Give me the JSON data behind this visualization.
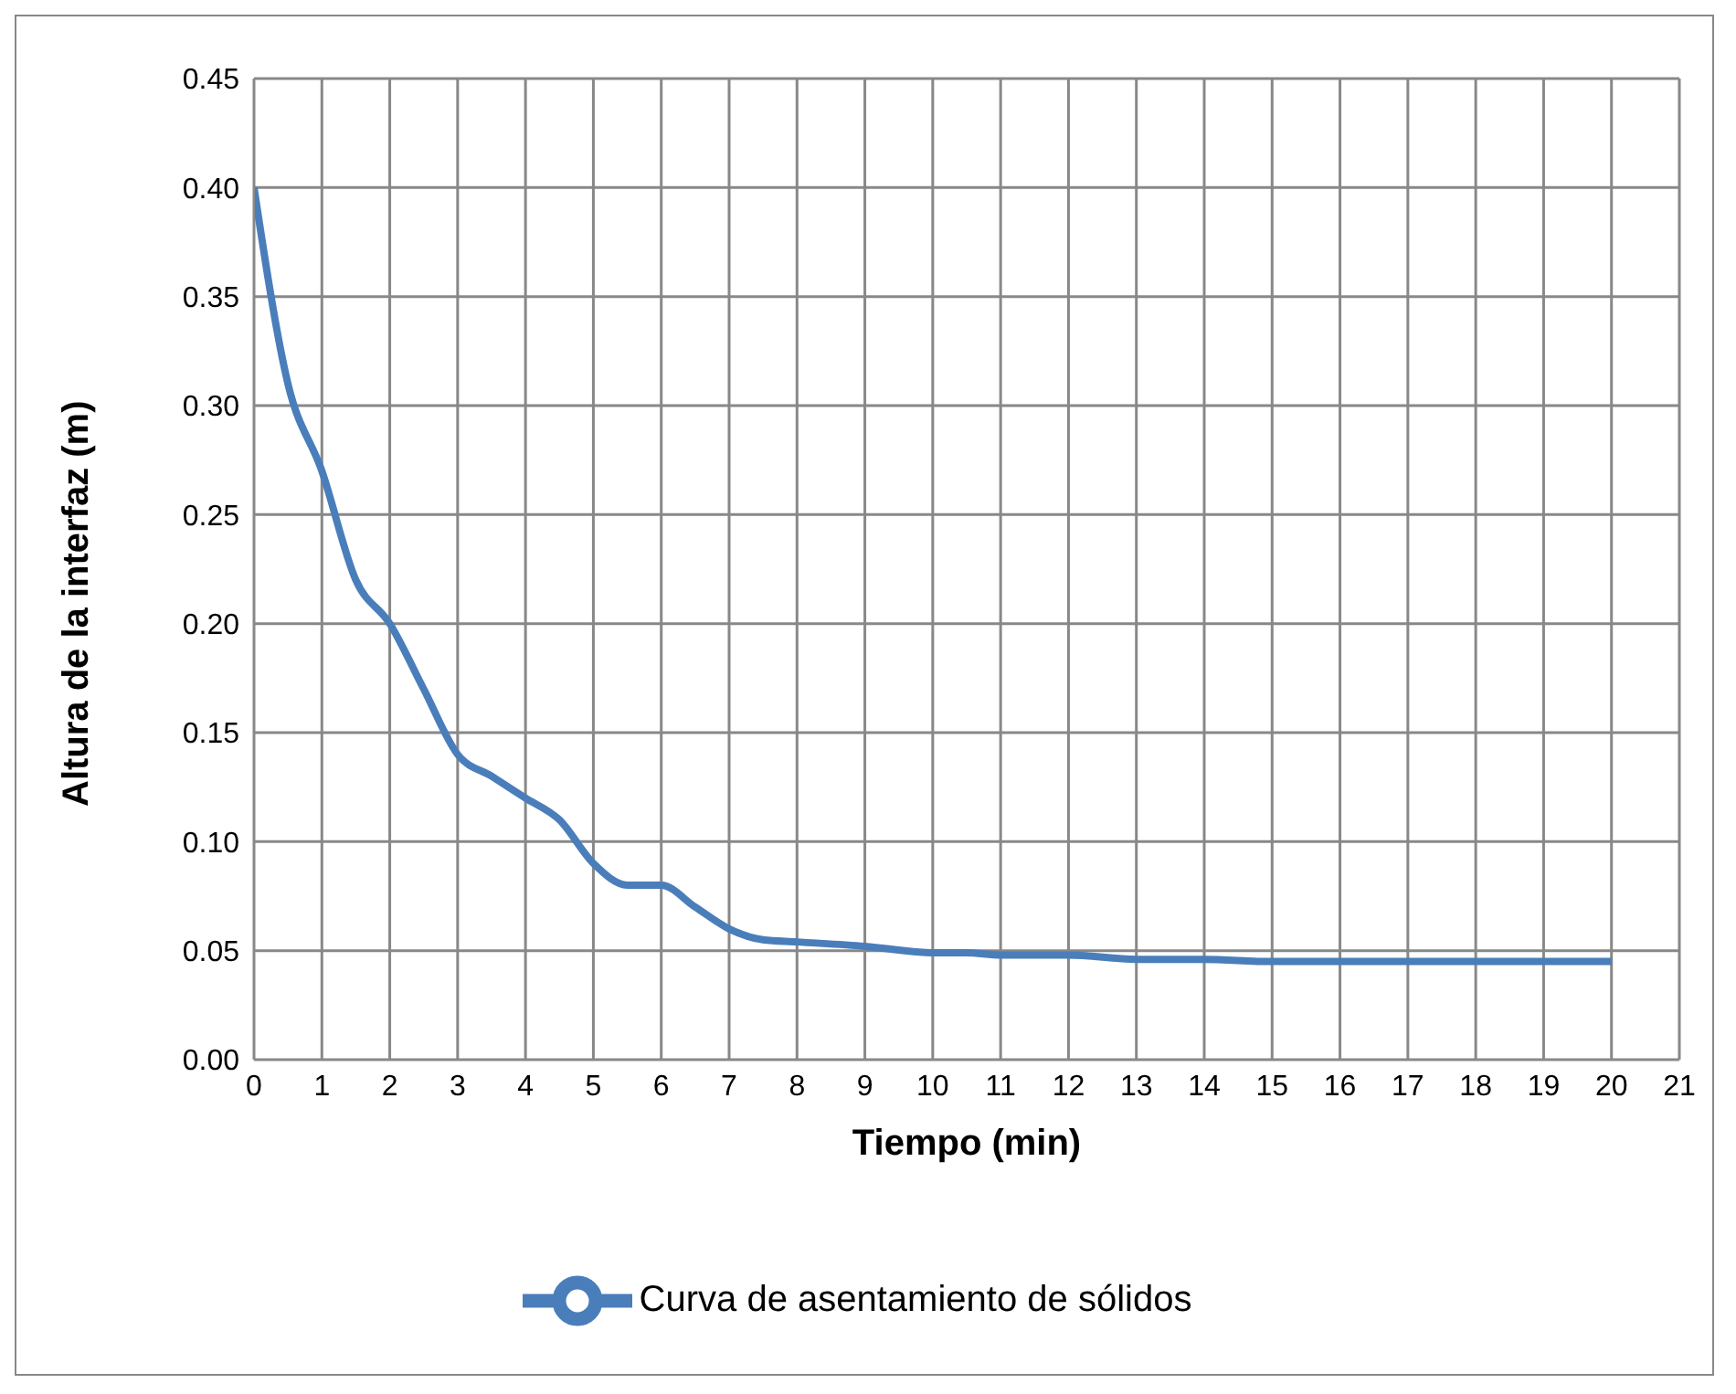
{
  "chart_data": {
    "type": "line",
    "xlabel": "Tiempo (min)",
    "ylabel": "Altura de la interfaz (m)",
    "x": [
      0,
      0.5,
      1,
      1.5,
      2,
      2.5,
      3,
      3.5,
      4,
      4.5,
      5,
      5.5,
      6,
      6.5,
      7,
      7.5,
      8,
      9,
      10,
      10.5,
      11,
      12,
      13,
      14,
      15,
      16,
      17,
      18,
      19,
      20
    ],
    "series": [
      {
        "name": "Curva de asentamiento de sólidos",
        "color": "#4a7ebb",
        "values": [
          0.4,
          0.31,
          0.27,
          0.22,
          0.2,
          0.17,
          0.14,
          0.13,
          0.12,
          0.11,
          0.09,
          0.08,
          0.08,
          0.07,
          0.06,
          0.055,
          0.054,
          0.052,
          0.049,
          0.049,
          0.048,
          0.048,
          0.046,
          0.046,
          0.045,
          0.045,
          0.045,
          0.045,
          0.045,
          0.045
        ]
      }
    ],
    "xlim": [
      0,
      21
    ],
    "xticks": [
      0,
      1,
      2,
      3,
      4,
      5,
      6,
      7,
      8,
      9,
      10,
      11,
      12,
      13,
      14,
      15,
      16,
      17,
      18,
      19,
      20,
      21
    ],
    "ylim": [
      0,
      0.45
    ],
    "yticks": [
      {
        "value": 0,
        "label": "0.00"
      },
      0.05,
      {
        "value": 0.1,
        "label": "0.10"
      },
      0.15,
      {
        "value": 0.2,
        "label": "0.20"
      },
      0.25,
      {
        "value": 0.3,
        "label": "0.30"
      },
      0.35,
      {
        "value": 0.4,
        "label": "0.40"
      },
      0.45
    ],
    "grid": true,
    "legend": "bottom",
    "marker": "none",
    "line_style": "solid"
  }
}
